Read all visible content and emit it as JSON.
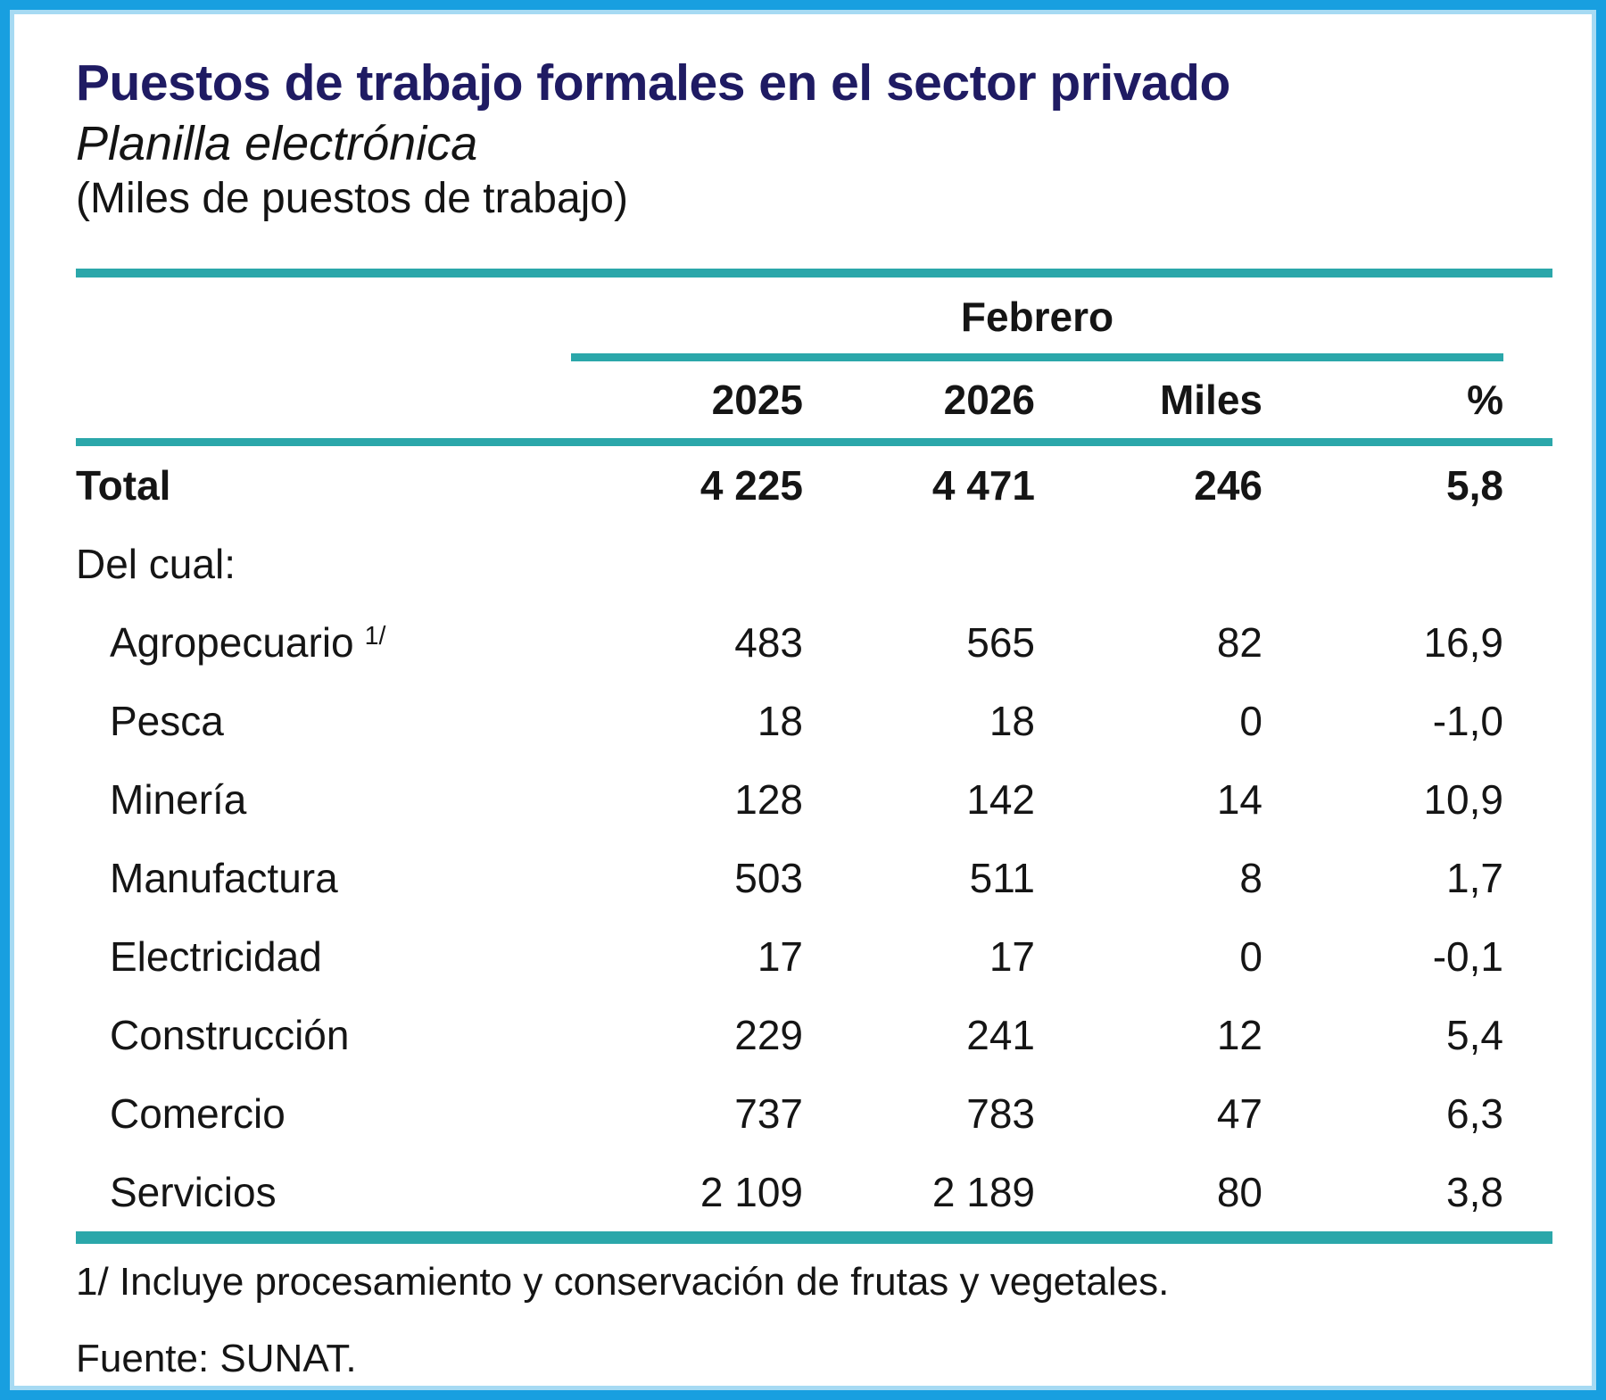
{
  "header": {
    "title": "Puestos de trabajo formales en el sector privado",
    "subtitle": "Planilla electrónica",
    "unit_note": "(Miles de puestos de trabajo)"
  },
  "table": {
    "group_header": "Febrero",
    "columns": [
      "2025",
      "2026",
      "Miles",
      "%"
    ],
    "total_row": {
      "label": "Total",
      "values": [
        "4 225",
        "4 471",
        "246",
        "5,8"
      ]
    },
    "section_label": "Del cual:",
    "rows": [
      {
        "label": "Agropecuario",
        "marker": "1/",
        "values": [
          "483",
          "565",
          "82",
          "16,9"
        ]
      },
      {
        "label": "Pesca",
        "values": [
          "18",
          "18",
          "0",
          "-1,0"
        ]
      },
      {
        "label": "Minería",
        "values": [
          "128",
          "142",
          "14",
          "10,9"
        ]
      },
      {
        "label": "Manufactura",
        "values": [
          "503",
          "511",
          "8",
          "1,7"
        ]
      },
      {
        "label": "Electricidad",
        "values": [
          "17",
          "17",
          "0",
          "-0,1"
        ]
      },
      {
        "label": "Construcción",
        "values": [
          "229",
          "241",
          "12",
          "5,4"
        ]
      },
      {
        "label": "Comercio",
        "values": [
          "737",
          "783",
          "47",
          "6,3"
        ]
      },
      {
        "label": "Servicios",
        "values": [
          "2 109",
          "2 189",
          "80",
          "3,8"
        ]
      }
    ]
  },
  "footnotes": {
    "note1": "1/ Incluye procesamiento y conservación de frutas y vegetales.",
    "source": "Fuente: SUNAT."
  },
  "colors": {
    "border_blue": "#18a0e0",
    "rule_teal": "#2ba7aa",
    "title_navy": "#1f1b63",
    "text": "#151515"
  },
  "chart_data": {
    "type": "table",
    "title": "Puestos de trabajo formales en el sector privado",
    "subtitle": "Planilla electrónica",
    "units": "Miles de puestos de trabajo",
    "period": "Febrero",
    "columns": [
      "2025",
      "2026",
      "Miles",
      "%"
    ],
    "categories": [
      "Total",
      "Agropecuario",
      "Pesca",
      "Minería",
      "Manufactura",
      "Electricidad",
      "Construcción",
      "Comercio",
      "Servicios"
    ],
    "series": [
      {
        "name": "2025",
        "values": [
          4225,
          483,
          18,
          128,
          503,
          17,
          229,
          737,
          2109
        ]
      },
      {
        "name": "2026",
        "values": [
          4471,
          565,
          18,
          142,
          511,
          17,
          241,
          783,
          2189
        ]
      },
      {
        "name": "Var. Miles",
        "values": [
          246,
          82,
          0,
          14,
          8,
          0,
          12,
          47,
          80
        ]
      },
      {
        "name": "Var. %",
        "values": [
          5.8,
          16.9,
          -1.0,
          10.9,
          1.7,
          -0.1,
          5.4,
          6.3,
          3.8
        ]
      }
    ],
    "footnote": "1/ Incluye procesamiento y conservación de frutas y vegetales.",
    "source": "Fuente: SUNAT."
  }
}
